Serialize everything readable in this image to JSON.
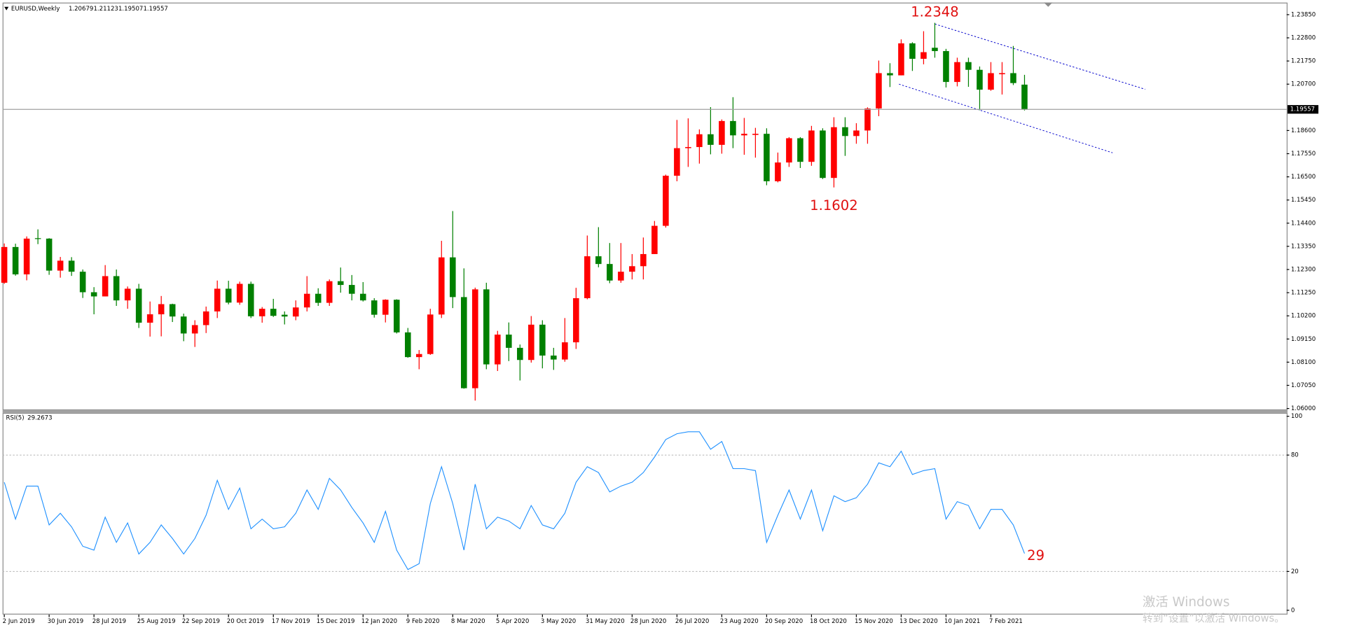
{
  "chart_data": [
    {
      "type": "candlestick",
      "title": "EURUSD,Weekly",
      "categories": [
        "2 Jun 2019",
        null,
        null,
        null,
        "30 Jun 2019",
        null,
        null,
        null,
        "28 Jul 2019",
        null,
        null,
        null,
        "25 Aug 2019",
        null,
        null,
        null,
        "22 Sep 2019",
        null,
        null,
        null,
        "20 Oct 2019",
        null,
        null,
        null,
        "17 Nov 2019",
        null,
        null,
        null,
        "15 Dec 2019",
        null,
        null,
        null,
        "12 Jan 2020",
        null,
        null,
        null,
        "9 Feb 2020",
        null,
        null,
        null,
        "8 Mar 2020",
        null,
        null,
        null,
        "5 Apr 2020",
        null,
        null,
        null,
        "3 May 2020",
        null,
        null,
        null,
        "31 May 2020",
        null,
        null,
        null,
        "28 Jun 2020",
        null,
        null,
        null,
        "26 Jul 2020",
        null,
        null,
        null,
        "23 Aug 2020",
        null,
        null,
        null,
        "20 Sep 2020",
        null,
        null,
        null,
        "18 Oct 2020",
        null,
        null,
        null,
        "15 Nov 2020",
        null,
        null,
        null,
        "13 Dec 2020",
        null,
        null,
        null,
        "10 Jan 2021",
        null,
        null,
        null,
        "7 Feb 2021",
        null,
        null,
        null
      ],
      "open": [
        1.117,
        1.1332,
        1.1208,
        1.1372,
        1.137,
        1.1225,
        1.127,
        1.122,
        1.1127,
        1.1108,
        1.12,
        1.109,
        1.1143,
        1.0989,
        1.1027,
        1.1073,
        1.1017,
        1.094,
        1.0978,
        1.104,
        1.1143,
        1.108,
        1.1165,
        1.1018,
        1.1052,
        1.1025,
        1.1017,
        1.1058,
        1.112,
        1.1079,
        1.1177,
        1.116,
        1.112,
        1.109,
        1.1025,
        1.1093,
        1.0945,
        1.0833,
        1.0847,
        1.1026,
        1.1285,
        1.1105,
        1.0692,
        1.114,
        1.08,
        1.0935,
        1.0875,
        1.082,
        1.098,
        1.084,
        1.0822,
        1.09,
        1.11,
        1.129,
        1.1255,
        1.118,
        1.122,
        1.1245,
        1.13,
        1.1428,
        1.1655,
        1.178,
        1.1785,
        1.1843,
        1.1795,
        1.1903,
        1.1838,
        1.184,
        1.1845,
        1.163,
        1.1715,
        1.1825,
        1.1718,
        1.186,
        1.1645,
        1.1875,
        1.1835,
        1.186,
        1.196,
        1.212,
        1.211,
        1.2255,
        1.2185,
        1.2235,
        1.222,
        1.208,
        1.217,
        1.2135,
        1.2045,
        1.2115,
        1.212,
        1.20679
      ],
      "high": [
        1.1348,
        1.1347,
        1.138,
        1.1412,
        1.1372,
        1.1287,
        1.1286,
        1.123,
        1.115,
        1.125,
        1.123,
        1.1153,
        1.1165,
        1.1085,
        1.111,
        1.1075,
        1.103,
        1.1,
        1.1062,
        1.118,
        1.1179,
        1.1175,
        1.1175,
        1.106,
        1.1097,
        1.104,
        1.109,
        1.12,
        1.1145,
        1.1185,
        1.1239,
        1.1205,
        1.1173,
        1.11,
        1.1095,
        1.1095,
        1.0965,
        1.0865,
        1.1052,
        1.136,
        1.1495,
        1.1235,
        1.1148,
        1.117,
        1.0952,
        1.099,
        1.089,
        1.1019,
        1.1,
        1.0875,
        1.101,
        1.1147,
        1.1384,
        1.1422,
        1.135,
        1.135,
        1.13,
        1.1375,
        1.145,
        1.166,
        1.1908,
        1.1915,
        1.1865,
        1.1966,
        1.191,
        1.2011,
        1.1917,
        1.1872,
        1.187,
        1.176,
        1.183,
        1.183,
        1.1881,
        1.187,
        1.192,
        1.192,
        1.1893,
        1.1965,
        1.2177,
        1.2165,
        1.2273,
        1.226,
        1.231,
        1.2348,
        1.223,
        1.219,
        1.219,
        1.215,
        1.217,
        1.217,
        1.2243,
        1.21123
      ],
      "low": [
        1.1165,
        1.1202,
        1.1181,
        1.1345,
        1.1206,
        1.1193,
        1.1201,
        1.1101,
        1.1027,
        1.1108,
        1.1065,
        1.1052,
        1.0965,
        1.0926,
        1.0927,
        1.0992,
        1.0905,
        1.0879,
        1.0942,
        1.101,
        1.1072,
        1.107,
        1.101,
        1.0989,
        1.1015,
        1.0981,
        1.1,
        1.104,
        1.1065,
        1.1065,
        1.1125,
        1.109,
        1.1085,
        1.1012,
        1.099,
        1.094,
        1.083,
        1.0778,
        1.0843,
        1.101,
        1.1055,
        1.069,
        1.0636,
        1.0778,
        1.077,
        1.0815,
        1.0727,
        1.0808,
        1.0782,
        1.0775,
        1.0812,
        1.087,
        1.1095,
        1.124,
        1.1168,
        1.117,
        1.1185,
        1.1185,
        1.13,
        1.142,
        1.163,
        1.1695,
        1.171,
        1.1752,
        1.1755,
        1.178,
        1.175,
        1.1737,
        1.1612,
        1.1625,
        1.1695,
        1.169,
        1.17,
        1.164,
        1.1602,
        1.1745,
        1.18,
        1.18,
        1.1925,
        1.2057,
        1.211,
        1.213,
        1.216,
        1.219,
        1.2055,
        1.206,
        1.2058,
        1.1952,
        1.204,
        1.2023,
        1.2066,
        1.19507
      ],
      "close": [
        1.1332,
        1.1208,
        1.137,
        1.137,
        1.1225,
        1.127,
        1.122,
        1.1127,
        1.1108,
        1.12,
        1.109,
        1.1143,
        1.0989,
        1.1027,
        1.1073,
        1.1017,
        1.094,
        1.0978,
        1.104,
        1.1143,
        1.108,
        1.1165,
        1.1018,
        1.1052,
        1.102,
        1.1017,
        1.1058,
        1.112,
        1.1079,
        1.1177,
        1.116,
        1.112,
        1.109,
        1.1025,
        1.1093,
        1.0945,
        1.0833,
        1.0847,
        1.1026,
        1.1285,
        1.1105,
        1.0692,
        1.114,
        1.08,
        1.0935,
        1.0875,
        1.082,
        1.098,
        1.084,
        1.0822,
        1.09,
        1.11,
        1.129,
        1.1255,
        1.118,
        1.122,
        1.1245,
        1.13,
        1.1428,
        1.1655,
        1.178,
        1.1785,
        1.1843,
        1.1795,
        1.1903,
        1.1838,
        1.1845,
        1.1845,
        1.163,
        1.1715,
        1.1825,
        1.1718,
        1.186,
        1.1645,
        1.1875,
        1.1835,
        1.186,
        1.196,
        1.212,
        1.211,
        1.2255,
        1.2185,
        1.2215,
        1.222,
        1.208,
        1.217,
        1.2135,
        1.2045,
        1.212,
        1.212,
        1.2075,
        1.19557
      ],
      "up_color": "#ff0000",
      "down_color": "#008000",
      "ylim": [
        1.0592,
        1.2432
      ],
      "yticks": [
        {
          "value": 1.06,
          "label": "1.06000"
        },
        {
          "value": 1.0705,
          "label": "1.07050"
        },
        {
          "value": 1.081,
          "label": "1.08100"
        },
        {
          "value": 1.0915,
          "label": "1.09150"
        },
        {
          "value": 1.102,
          "label": "1.10200"
        },
        {
          "value": 1.1125,
          "label": "1.11250"
        },
        {
          "value": 1.123,
          "label": "1.12300"
        },
        {
          "value": 1.1335,
          "label": "1.13350"
        },
        {
          "value": 1.144,
          "label": "1.14400"
        },
        {
          "value": 1.1545,
          "label": "1.15450"
        },
        {
          "value": 1.165,
          "label": "1.16500"
        },
        {
          "value": 1.1755,
          "label": "1.17550"
        },
        {
          "value": 1.186,
          "label": "1.18600"
        },
        {
          "value": 1.207,
          "label": "1.20700"
        },
        {
          "value": 1.2175,
          "label": "1.21750"
        },
        {
          "value": 1.228,
          "label": "1.22800"
        },
        {
          "value": 1.2385,
          "label": "1.23850"
        }
      ],
      "annotations": [
        1.2348,
        1.1602
      ],
      "annotation_color": "#e01010"
    },
    {
      "type": "line",
      "title": "RSI(5)",
      "values": [
        66,
        47,
        64,
        64,
        44,
        50,
        43,
        33,
        31,
        48,
        35,
        45,
        29,
        35,
        44,
        37,
        29,
        37,
        49,
        67,
        52,
        63,
        42,
        47,
        42,
        43,
        50,
        62,
        52,
        68,
        62,
        53,
        45,
        35,
        51,
        31,
        21,
        24,
        55,
        74,
        55,
        31,
        65,
        42,
        48,
        46,
        42,
        54,
        44,
        42,
        50,
        66,
        74,
        71,
        61,
        64,
        66,
        71,
        79,
        88,
        91,
        92,
        92,
        83,
        87,
        73,
        73,
        72,
        35,
        49,
        62,
        47,
        62,
        41,
        59,
        56,
        58,
        65,
        76,
        74,
        82,
        70,
        72,
        73,
        47,
        56,
        54,
        42,
        52,
        52,
        44,
        29.2673
      ],
      "color": "#1e90ff",
      "ylim": [
        0,
        100
      ],
      "yticks": [
        0,
        20,
        80,
        100
      ],
      "annotations": [
        29
      ],
      "annotation_color": "#e01010"
    }
  ],
  "watermark": [
    "激活 Windows",
    "转到“设置”以激活 Windows。"
  ]
}
